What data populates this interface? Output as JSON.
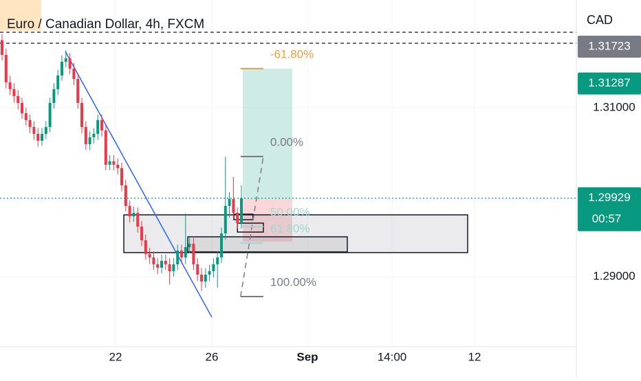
{
  "chart_data": {
    "type": "candlestick",
    "title": "Euro / Canadian Dollar, 4h, FXCM",
    "currency": "CAD",
    "up_color": "#089981",
    "down_color": "#f23645",
    "open": [
      1.318,
      1.31626,
      1.31301,
      1.3122,
      1.31138,
      1.31057,
      1.30935,
      1.30854,
      1.30772,
      1.30691,
      1.3061,
      1.30691,
      1.30772,
      1.31057,
      1.3122,
      1.31382,
      1.31545,
      1.31585,
      1.31463,
      1.31341,
      1.31057,
      1.30772,
      1.30569,
      1.3065,
      1.30691,
      1.30854,
      1.30732,
      1.30325,
      1.30366,
      1.30325,
      1.30285,
      1.30081,
      1.29837,
      1.29715,
      1.29756,
      1.29593,
      1.29431,
      1.29268,
      1.29228,
      1.29146,
      1.29106,
      1.29187,
      1.29146,
      1.29065,
      1.29146,
      1.29309,
      1.29228,
      1.2935,
      1.2939,
      1.29146,
      1.29024,
      1.28943,
      1.29024,
      1.29065,
      1.29146,
      1.29228,
      1.29512,
      1.29837,
      1.29919,
      1.29756,
      1.29634
    ],
    "high": [
      1.3187,
      1.317,
      1.3138,
      1.3129,
      1.3121,
      1.3112,
      1.31,
      1.3092,
      1.3084,
      1.3076,
      1.3076,
      1.3084,
      1.3112,
      1.3129,
      1.3145,
      1.3162,
      1.3168,
      1.3165,
      1.3153,
      1.3141,
      1.3112,
      1.3084,
      1.3072,
      1.3076,
      1.3092,
      1.3092,
      1.308,
      1.3044,
      1.3044,
      1.304,
      1.3035,
      1.3015,
      1.299,
      1.2983,
      1.2982,
      1.2966,
      1.295,
      1.2934,
      1.293,
      1.2922,
      1.2926,
      1.2926,
      1.2922,
      1.2922,
      1.2938,
      1.2938,
      1.2975,
      1.2946,
      1.2946,
      1.2922,
      1.291,
      1.291,
      1.2914,
      1.2922,
      1.293,
      1.2958,
      1.3042,
      1.3,
      1.3018,
      1.2982,
      1.3008
    ],
    "low": [
      1.3156,
      1.3123,
      1.3115,
      1.3106,
      1.3098,
      1.3087,
      1.3079,
      1.307,
      1.3062,
      1.3054,
      1.3055,
      1.3063,
      1.3071,
      1.3099,
      1.3115,
      1.3132,
      1.3148,
      1.314,
      1.3127,
      1.3099,
      1.307,
      1.305,
      1.305,
      1.3058,
      1.3062,
      1.3066,
      1.3026,
      1.3026,
      1.3026,
      1.3021,
      1.3001,
      1.2977,
      1.2964,
      1.2965,
      1.2952,
      1.2936,
      1.292,
      1.2915,
      1.2908,
      1.2903,
      1.2904,
      1.2908,
      1.2891,
      1.29,
      1.2908,
      1.2915,
      1.2915,
      1.2928,
      1.2908,
      1.2895,
      1.2883,
      1.2887,
      1.2895,
      1.2899,
      1.2887,
      1.2916,
      1.2944,
      1.297,
      1.2969,
      1.2957,
      1.2957
    ],
    "close": [
      1.31626,
      1.31301,
      1.3122,
      1.31138,
      1.31057,
      1.30935,
      1.30854,
      1.30772,
      1.30691,
      1.3061,
      1.30691,
      1.30772,
      1.31057,
      1.3122,
      1.31382,
      1.31545,
      1.31585,
      1.31463,
      1.31341,
      1.31057,
      1.30772,
      1.30569,
      1.3065,
      1.30691,
      1.30854,
      1.30732,
      1.30325,
      1.30366,
      1.30325,
      1.30285,
      1.30081,
      1.29837,
      1.29715,
      1.29756,
      1.29593,
      1.29431,
      1.29268,
      1.29228,
      1.29146,
      1.29106,
      1.29187,
      1.29146,
      1.29065,
      1.29146,
      1.29309,
      1.29228,
      1.2935,
      1.2939,
      1.29146,
      1.29024,
      1.28943,
      1.29024,
      1.29065,
      1.29146,
      1.29228,
      1.29512,
      1.29837,
      1.29919,
      1.29756,
      1.29634,
      1.29929
    ],
    "xlim": [
      -0.52,
      143.97
    ],
    "ylim": [
      1.28171,
      1.32276
    ],
    "xticks": [
      {
        "value": 28.45,
        "label": "22"
      },
      {
        "value": 52.59,
        "label": "26"
      },
      {
        "value": 76.55,
        "label": "Sep"
      },
      {
        "value": 97.76,
        "label": "14:00"
      },
      {
        "value": 118.45,
        "label": "12"
      }
    ],
    "yticks": [
      {
        "value": 1.29,
        "label": "1.29000"
      },
      {
        "value": 1.31,
        "label": "1.31000"
      }
    ],
    "grid": true,
    "dashed_lines": [
      1.31894,
      1.31764
    ],
    "price_labels": [
      {
        "value": 1.31723,
        "label": "1.31723",
        "color": "#787b86"
      },
      {
        "value": 1.31287,
        "label": "1.31287",
        "color": "#089981"
      },
      {
        "value": 1.29929,
        "label": "1.29929",
        "color": "#089981",
        "countdown": "00:57"
      }
    ],
    "trendline": {
      "x": [
        15.86,
        52.59
      ],
      "y": [
        1.31667,
        1.2852
      ],
      "color": "#2962ff"
    },
    "boxes": [
      {
        "x": [
          30.52,
          116.72
        ],
        "y": [
          1.29285,
          1.29732
        ]
      },
      {
        "x": [
          46.55,
          86.55
        ],
        "y": [
          1.29293,
          1.29472
        ]
      },
      {
        "x": [
          58.1,
          62.9
        ],
        "y": [
          1.29675,
          1.2974
        ]
      },
      {
        "x": [
          59.0,
          65.5
        ],
        "y": [
          1.29528,
          1.29634
        ]
      }
    ],
    "position": {
      "x": [
        60.34,
        72.76
      ],
      "target": 1.31463,
      "entry": 1.29919,
      "stop": 1.29415
    },
    "fib": {
      "x": [
        59.8,
        65.5
      ],
      "levels": [
        {
          "label": "-61.80%",
          "price": 1.31463,
          "color": "#f59d3f"
        },
        {
          "label": "0.00%",
          "price": 1.30423,
          "color": "#787b86"
        },
        {
          "label": "50.00%",
          "price": 1.29593,
          "color": "#9fd8d0"
        },
        {
          "label": "61.80%",
          "price": 1.29397,
          "color": "#9fd8d0"
        },
        {
          "label": "100.00%",
          "price": 1.28764,
          "color": "#787b86"
        }
      ]
    }
  }
}
